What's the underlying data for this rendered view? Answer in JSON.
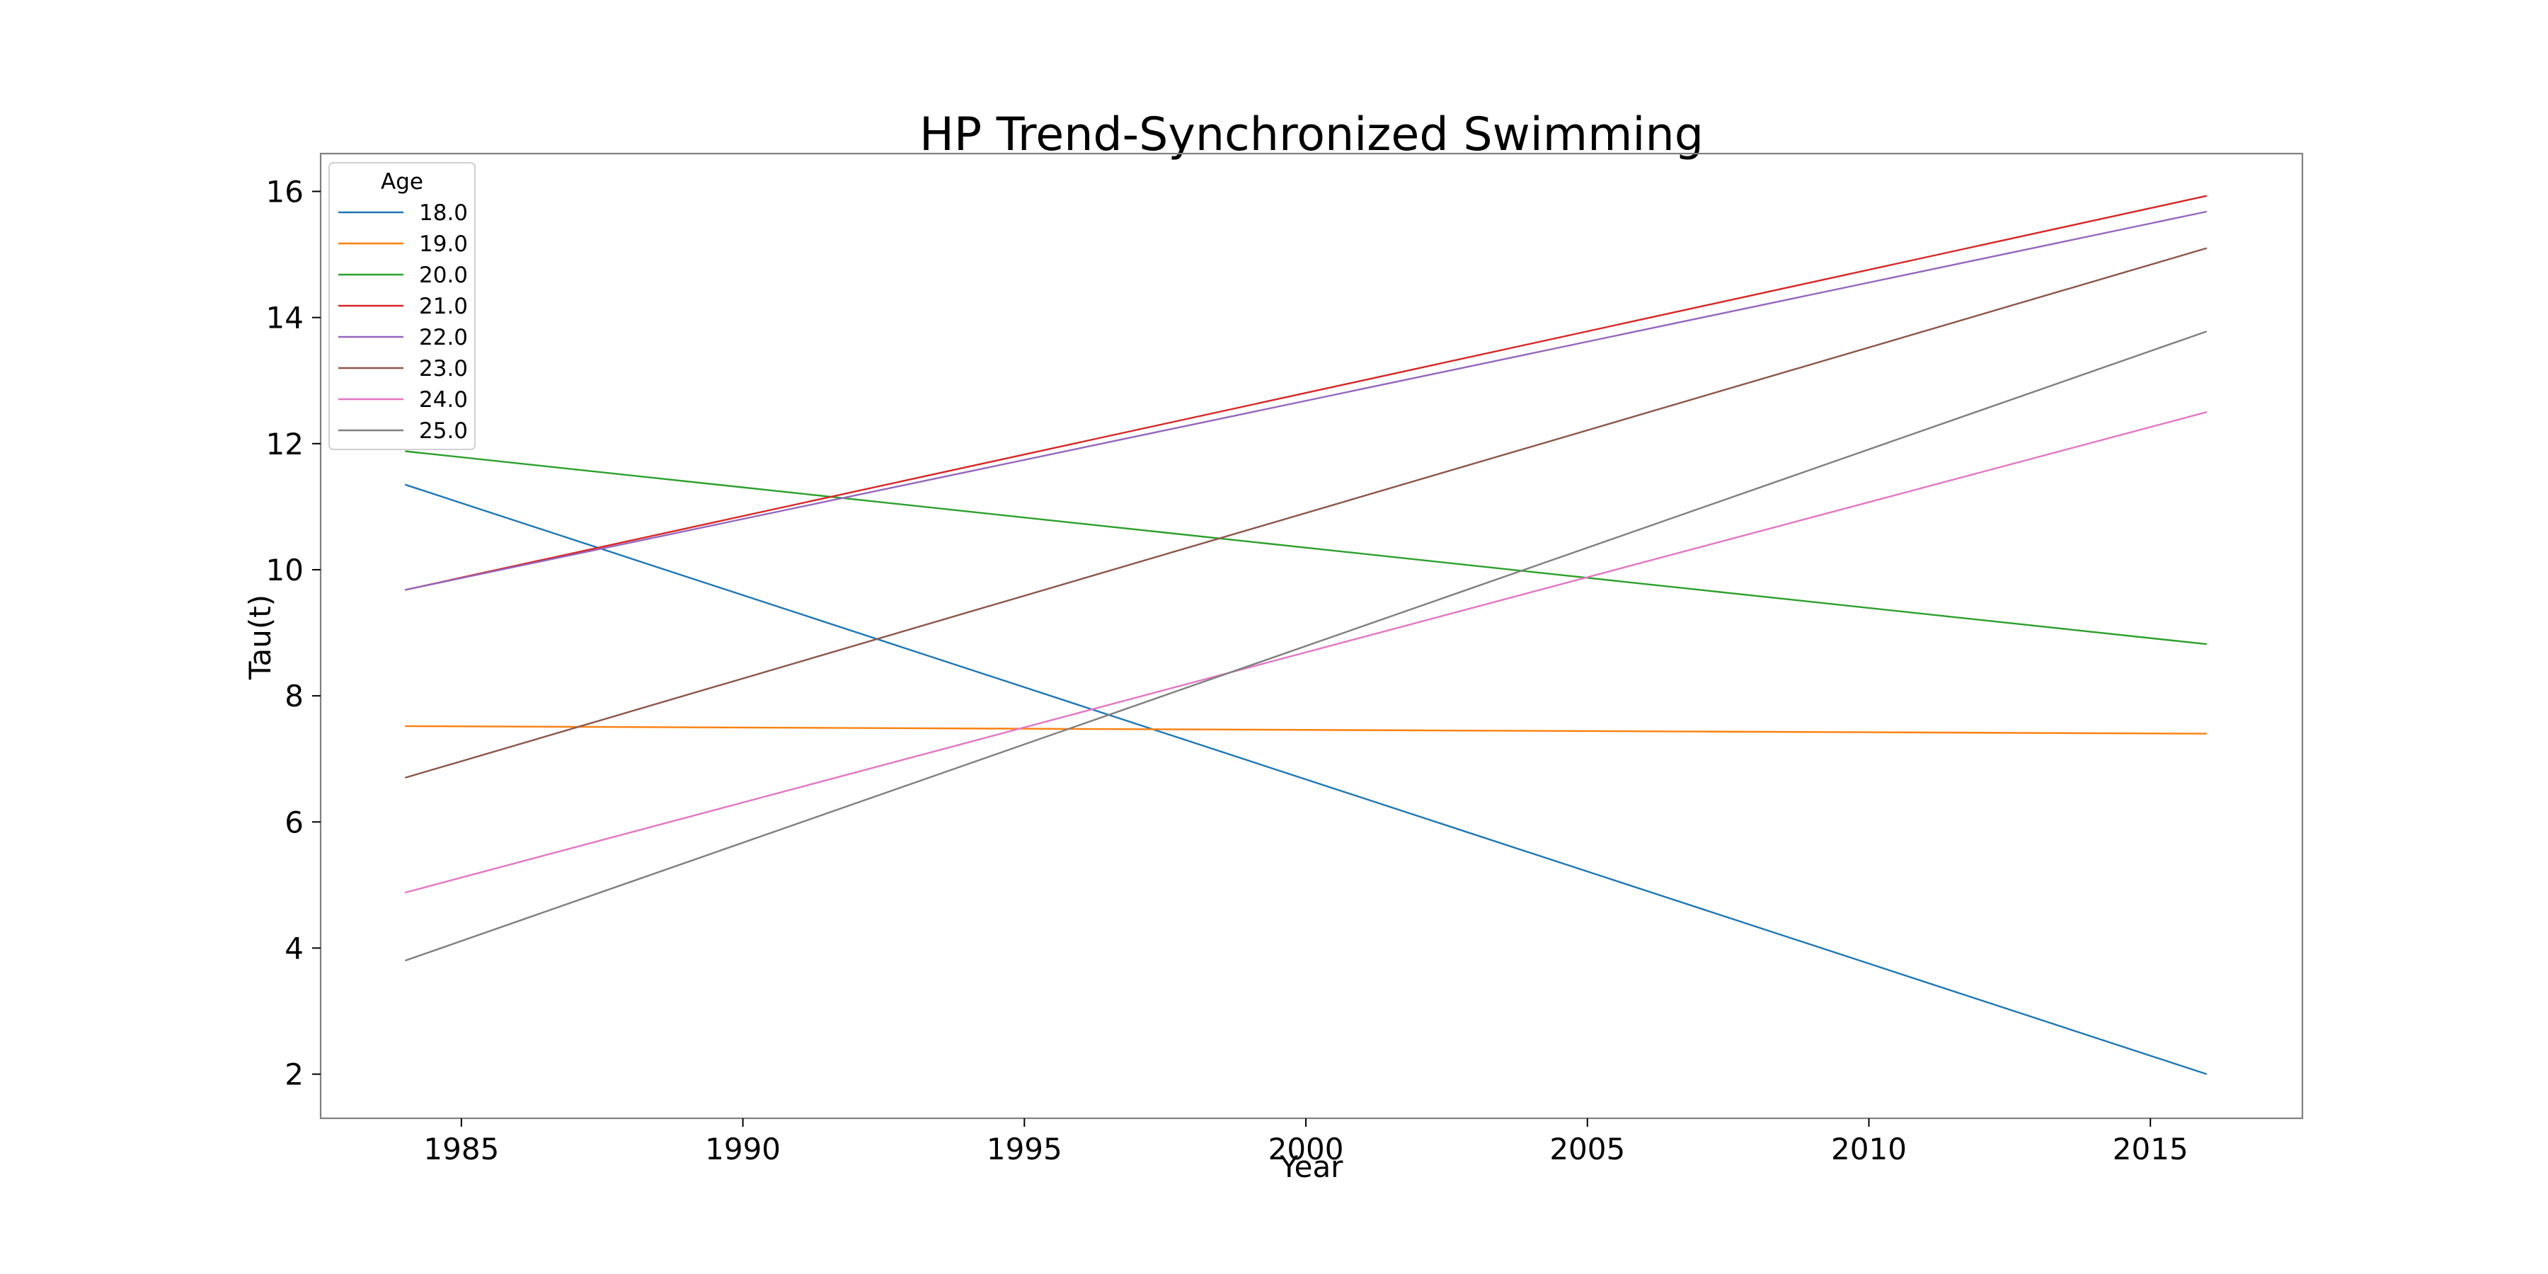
{
  "chart_data": {
    "type": "line",
    "title": "HP Trend-Synchronized Swimming",
    "xlabel": "Year",
    "ylabel": "Tau(t)",
    "xlim": [
      1982.5,
      2017.7
    ],
    "ylim": [
      1.3,
      16.6
    ],
    "xticks": [
      1985,
      1990,
      1995,
      2000,
      2005,
      2010,
      2015
    ],
    "yticks": [
      2,
      4,
      6,
      8,
      10,
      12,
      14,
      16
    ],
    "grid": false,
    "legend": {
      "title": "Age",
      "position": "top-left"
    },
    "x": [
      1984,
      2016
    ],
    "series": [
      {
        "name": "18.0",
        "color": "#1f77b4",
        "values": [
          11.35,
          2.0
        ]
      },
      {
        "name": "19.0",
        "color": "#ff7f0e",
        "values": [
          7.52,
          7.4
        ]
      },
      {
        "name": "20.0",
        "color": "#2ca02c",
        "values": [
          11.88,
          8.82
        ]
      },
      {
        "name": "21.0",
        "color": "#d62728",
        "values": [
          9.68,
          15.93
        ]
      },
      {
        "name": "22.0",
        "color": "#9467bd",
        "values": [
          9.68,
          15.68
        ]
      },
      {
        "name": "23.0",
        "color": "#8c564b",
        "values": [
          6.7,
          15.1
        ]
      },
      {
        "name": "24.0",
        "color": "#e377c2",
        "values": [
          4.88,
          12.5
        ]
      },
      {
        "name": "25.0",
        "color": "#7f7f7f",
        "values": [
          3.8,
          13.78
        ]
      }
    ]
  }
}
